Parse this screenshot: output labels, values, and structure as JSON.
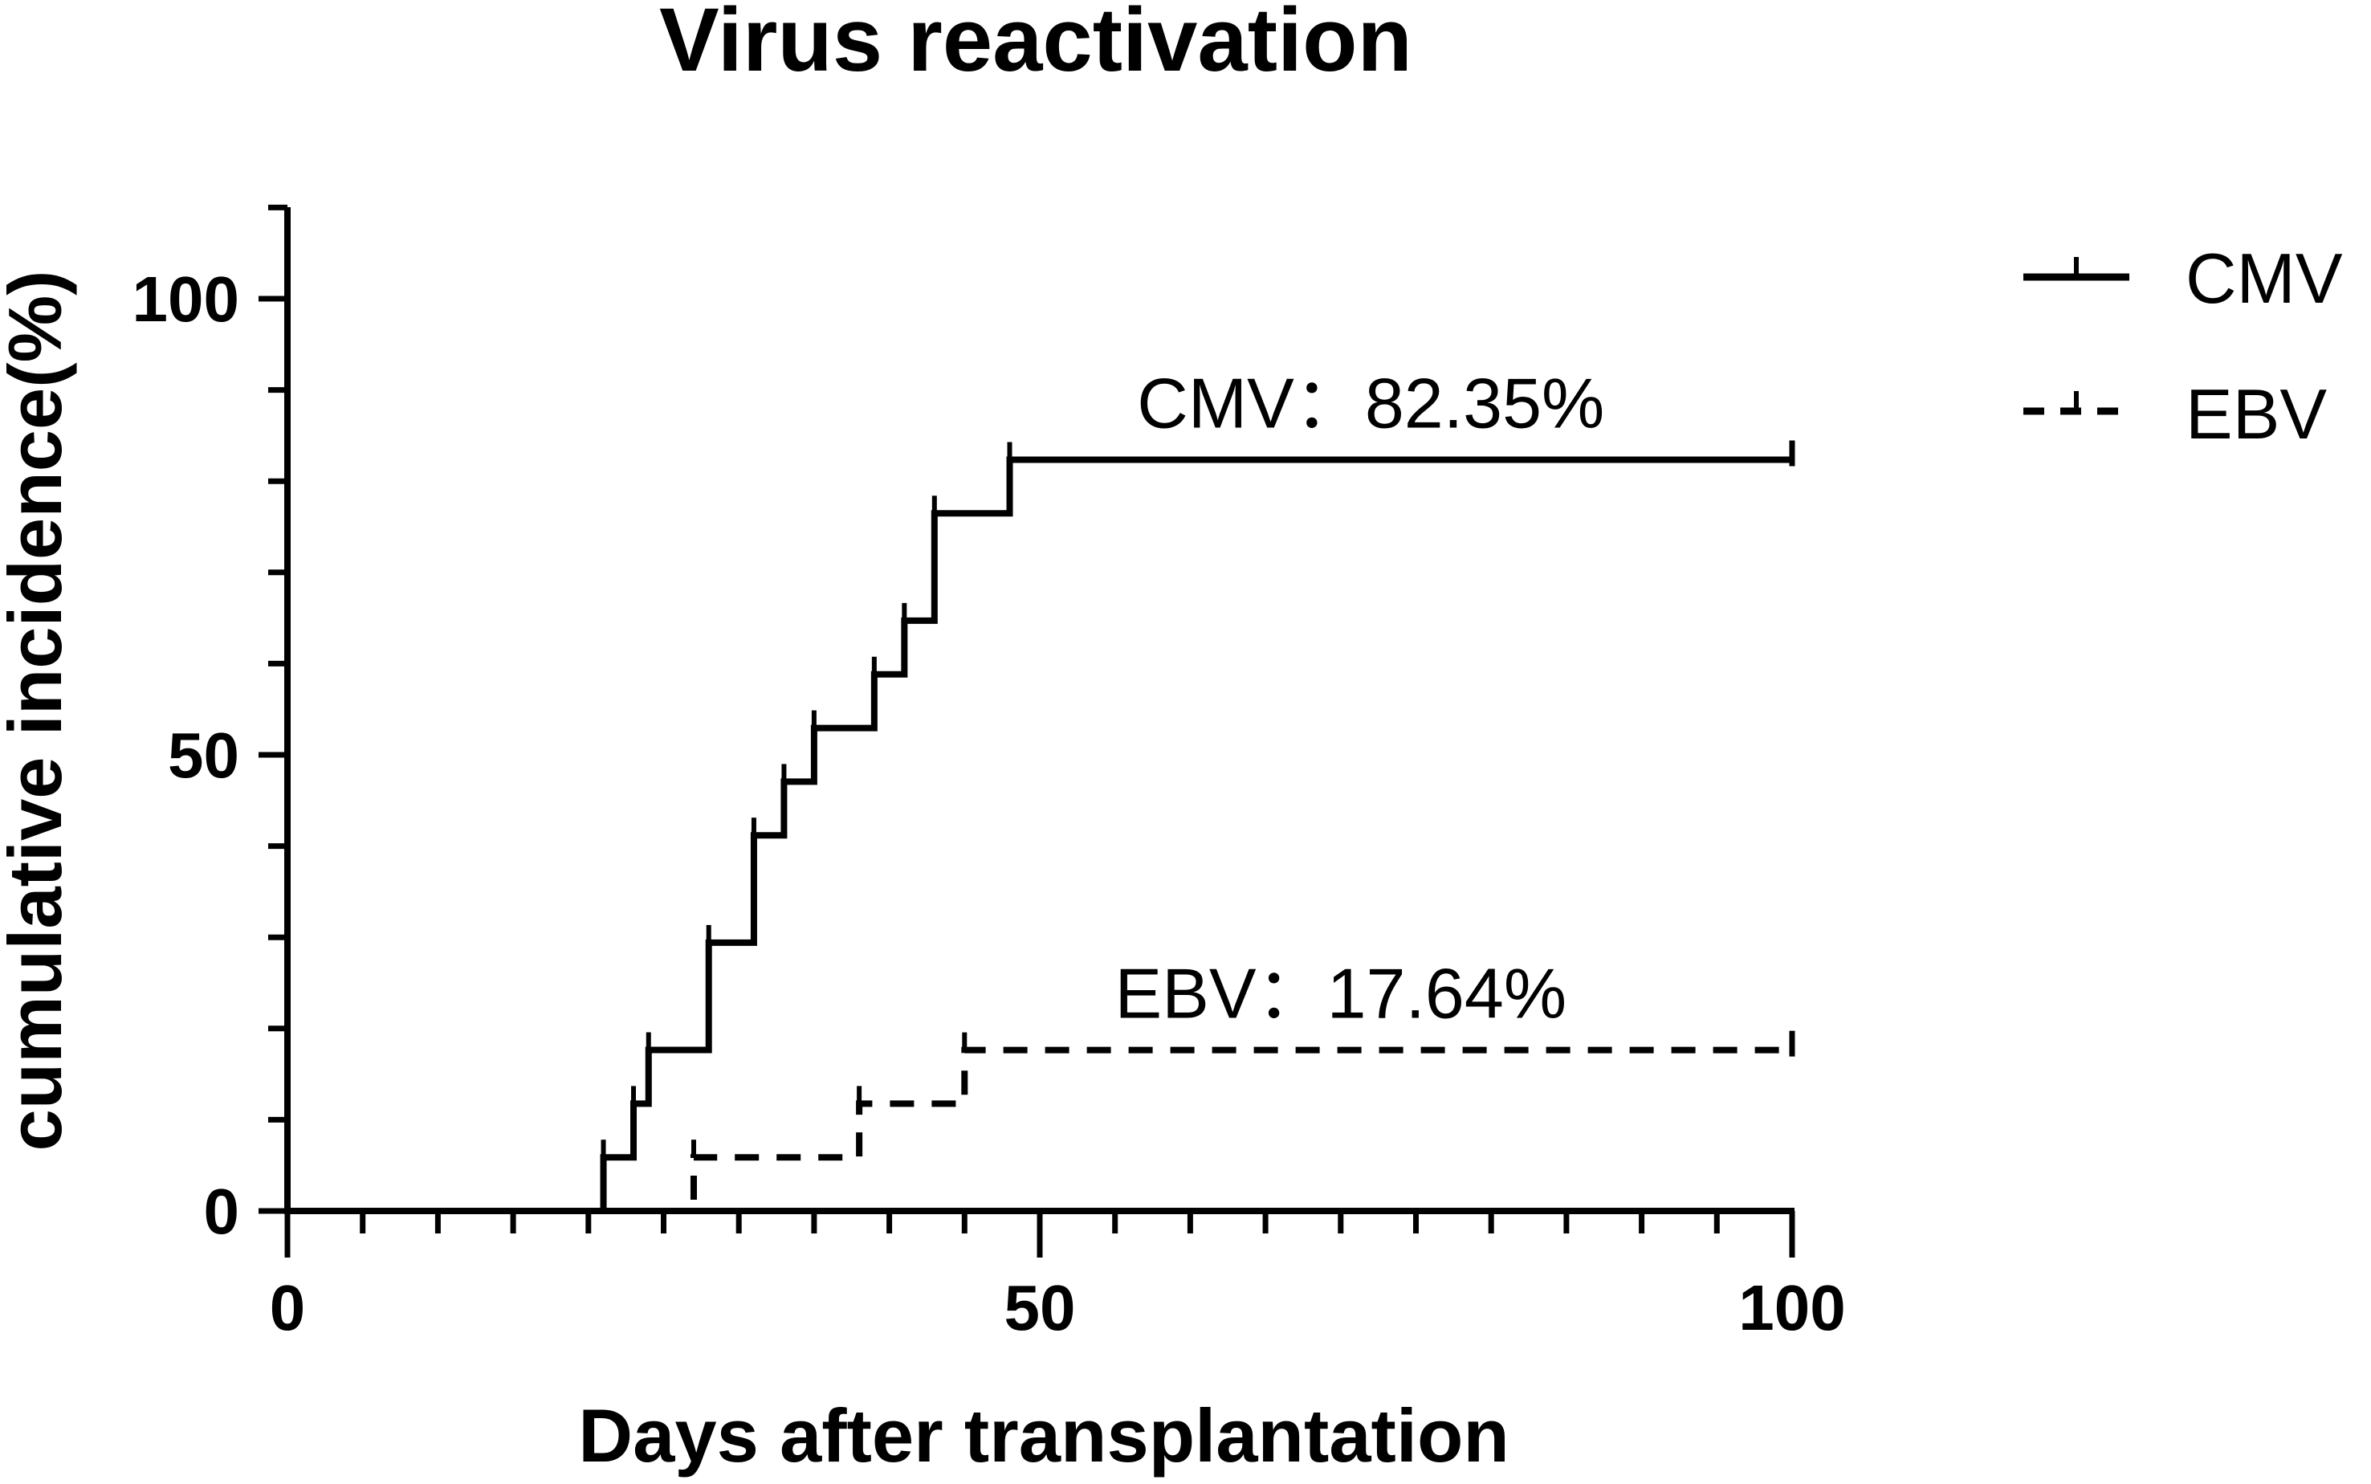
{
  "chart_data": {
    "type": "line",
    "step": true,
    "title": "Virus reactivation",
    "xlabel": "Days after transplantation",
    "ylabel": "cumulative incidence(%)",
    "xlim": [
      0,
      100
    ],
    "ylim": [
      0,
      110
    ],
    "xticks": [
      0,
      50,
      100
    ],
    "yticks": [
      0,
      50,
      100
    ],
    "x_minor_step": 5,
    "y_minor_step": 10,
    "grid": false,
    "legend_position": "top-right",
    "series": [
      {
        "name": "CMV",
        "style": "solid",
        "color": "#000000",
        "x": [
          0,
          21,
          23,
          24,
          28,
          31,
          33,
          35,
          39,
          41,
          43,
          48,
          100
        ],
        "y": [
          0,
          5.88,
          11.76,
          17.65,
          29.41,
          41.18,
          47.06,
          52.94,
          58.82,
          64.71,
          76.47,
          82.35,
          82.35
        ],
        "censored_x": [
          100
        ]
      },
      {
        "name": "EBV",
        "style": "dashed",
        "color": "#000000",
        "x": [
          0,
          27,
          38,
          45,
          100
        ],
        "y": [
          0,
          5.88,
          11.76,
          17.64,
          17.64
        ],
        "censored_x": [
          100
        ]
      }
    ],
    "annotations": [
      {
        "text": "CMV：82.35%",
        "x": 72,
        "y": 82.35,
        "series": "CMV"
      },
      {
        "text": "EBV：17.64%",
        "x": 70,
        "y": 17.64,
        "series": "EBV"
      }
    ]
  }
}
